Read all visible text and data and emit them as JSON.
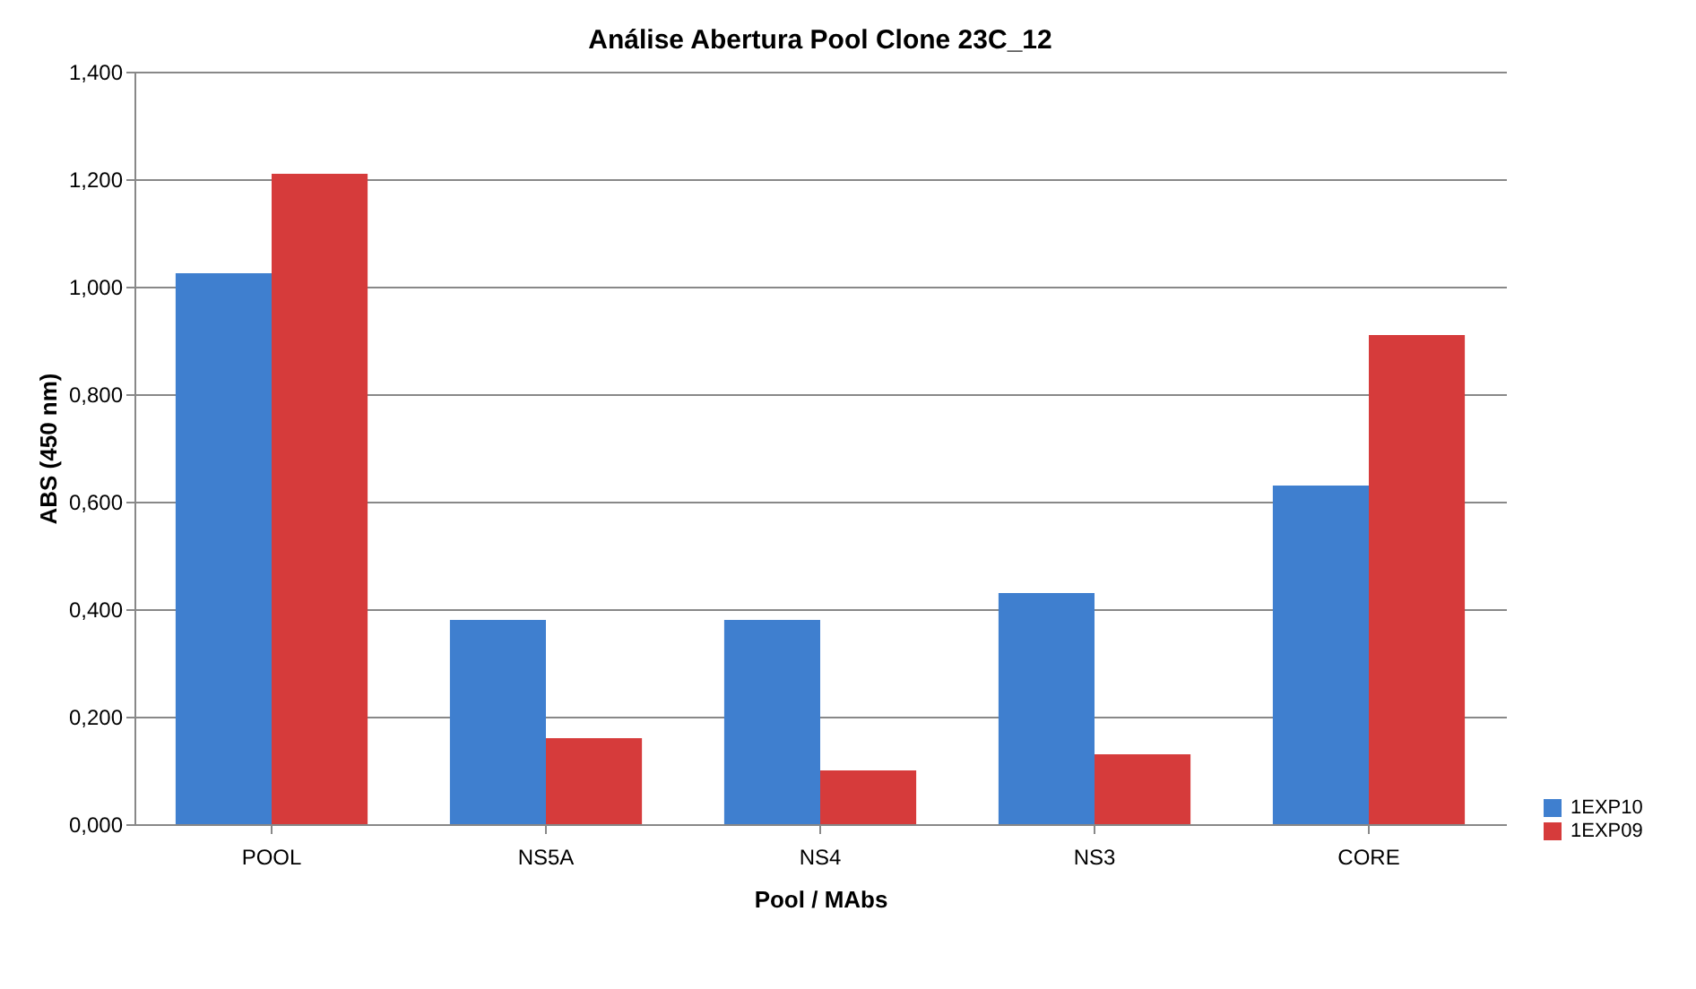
{
  "chart_data": {
    "type": "bar",
    "title": "Análise Abertura Pool Clone 23C_12",
    "xlabel": "Pool / MAbs",
    "ylabel": "ABS (450 nm)",
    "categories": [
      "POOL",
      "NS5A",
      "NS4",
      "NS3",
      "CORE"
    ],
    "series": [
      {
        "name": "1EXP10",
        "color": "#3f7fcf",
        "values": [
          1.025,
          0.38,
          0.38,
          0.43,
          0.63
        ]
      },
      {
        "name": "1EXP09",
        "color": "#d63b3b",
        "values": [
          1.21,
          0.16,
          0.1,
          0.13,
          0.91
        ]
      }
    ],
    "ylim": [
      0,
      1.4
    ],
    "yticks": [
      {
        "value": 0,
        "label": "0,000"
      },
      {
        "value": 0.2,
        "label": "0,200"
      },
      {
        "value": 0.4,
        "label": "0,400"
      },
      {
        "value": 0.6,
        "label": "0,600"
      },
      {
        "value": 0.8,
        "label": "0,800"
      },
      {
        "value": 1.0,
        "label": "1,000"
      },
      {
        "value": 1.2,
        "label": "1,200"
      },
      {
        "value": 1.4,
        "label": "1,400"
      }
    ],
    "grid": "y",
    "legend": "bottom right"
  }
}
